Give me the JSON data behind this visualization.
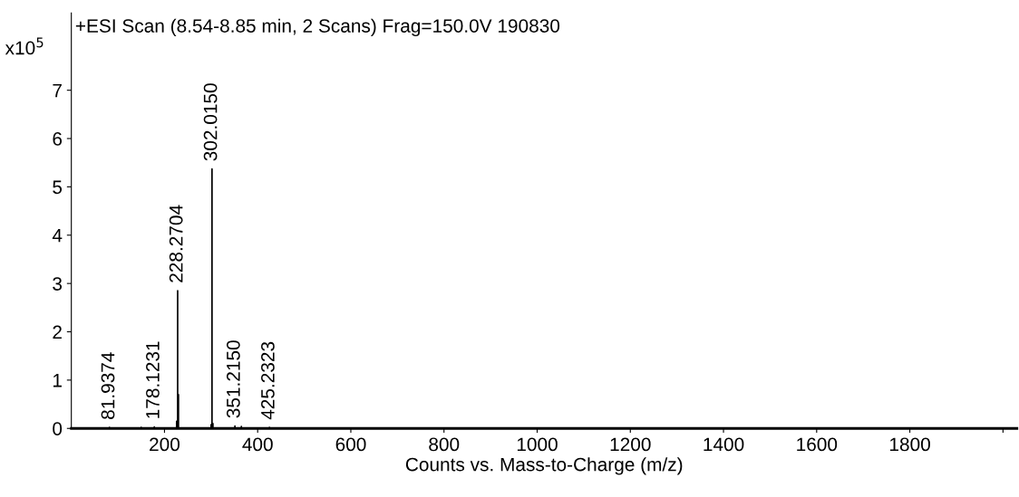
{
  "chart_data": {
    "type": "line",
    "title": "+ESI Scan (8.54-8.85 min, 2 Scans) Frag=150.0V 190830",
    "xlabel": "Counts vs. Mass-to-Charge (m/z)",
    "ylabel": "x10$^{5}$",
    "series": [
      {
        "color": "#000000",
        "x": [
          81.9374,
          81.9374,
          81.9374,
          150,
          150,
          150,
          178.1231,
          178.1231,
          178.1231,
          226,
          226,
          226,
          228.2704,
          228.2704,
          228.2704,
          230,
          230,
          230,
          300,
          300,
          300,
          302.015,
          302.015,
          302.015,
          304,
          304,
          304,
          351.215,
          351.215,
          351.215,
          365,
          365,
          365,
          425.2323,
          425.2323,
          425.2323
        ],
        "values": [
          0,
          0.02,
          0,
          0,
          0.02,
          0,
          0,
          0.03,
          0,
          0,
          0.15,
          0,
          0,
          2.85,
          0,
          0,
          0.7,
          0,
          0,
          0.08,
          0,
          0,
          5.37,
          0,
          0,
          0.1,
          0,
          0,
          0.05,
          0,
          0,
          0.04,
          0,
          0,
          0.02,
          0
        ]
      }
    ],
    "annotations": [
      {
        "text": "81.9374",
        "x": 81.9374,
        "y": 0.02
      },
      {
        "text": "178.1231",
        "x": 178.1231,
        "y": 0.03
      },
      {
        "text": "228.2704",
        "x": 228.2704,
        "y": 2.85
      },
      {
        "text": "302.0150",
        "x": 302.015,
        "y": 5.37
      },
      {
        "text": "351.2150",
        "x": 351.215,
        "y": 0.05
      },
      {
        "text": "425.2323",
        "x": 425.2323,
        "y": 0.02
      }
    ],
    "xlim": [
      0,
      2030
    ],
    "ylim": [
      0,
      8.6
    ],
    "xticks": [
      200,
      400,
      600,
      800,
      1000,
      1200,
      1400,
      1600,
      1800,
      {
        "value": 2000,
        "label": null
      }
    ],
    "yticks": [
      0,
      1,
      2,
      3,
      4,
      5,
      6,
      7
    ],
    "grid": false,
    "legend": false
  }
}
